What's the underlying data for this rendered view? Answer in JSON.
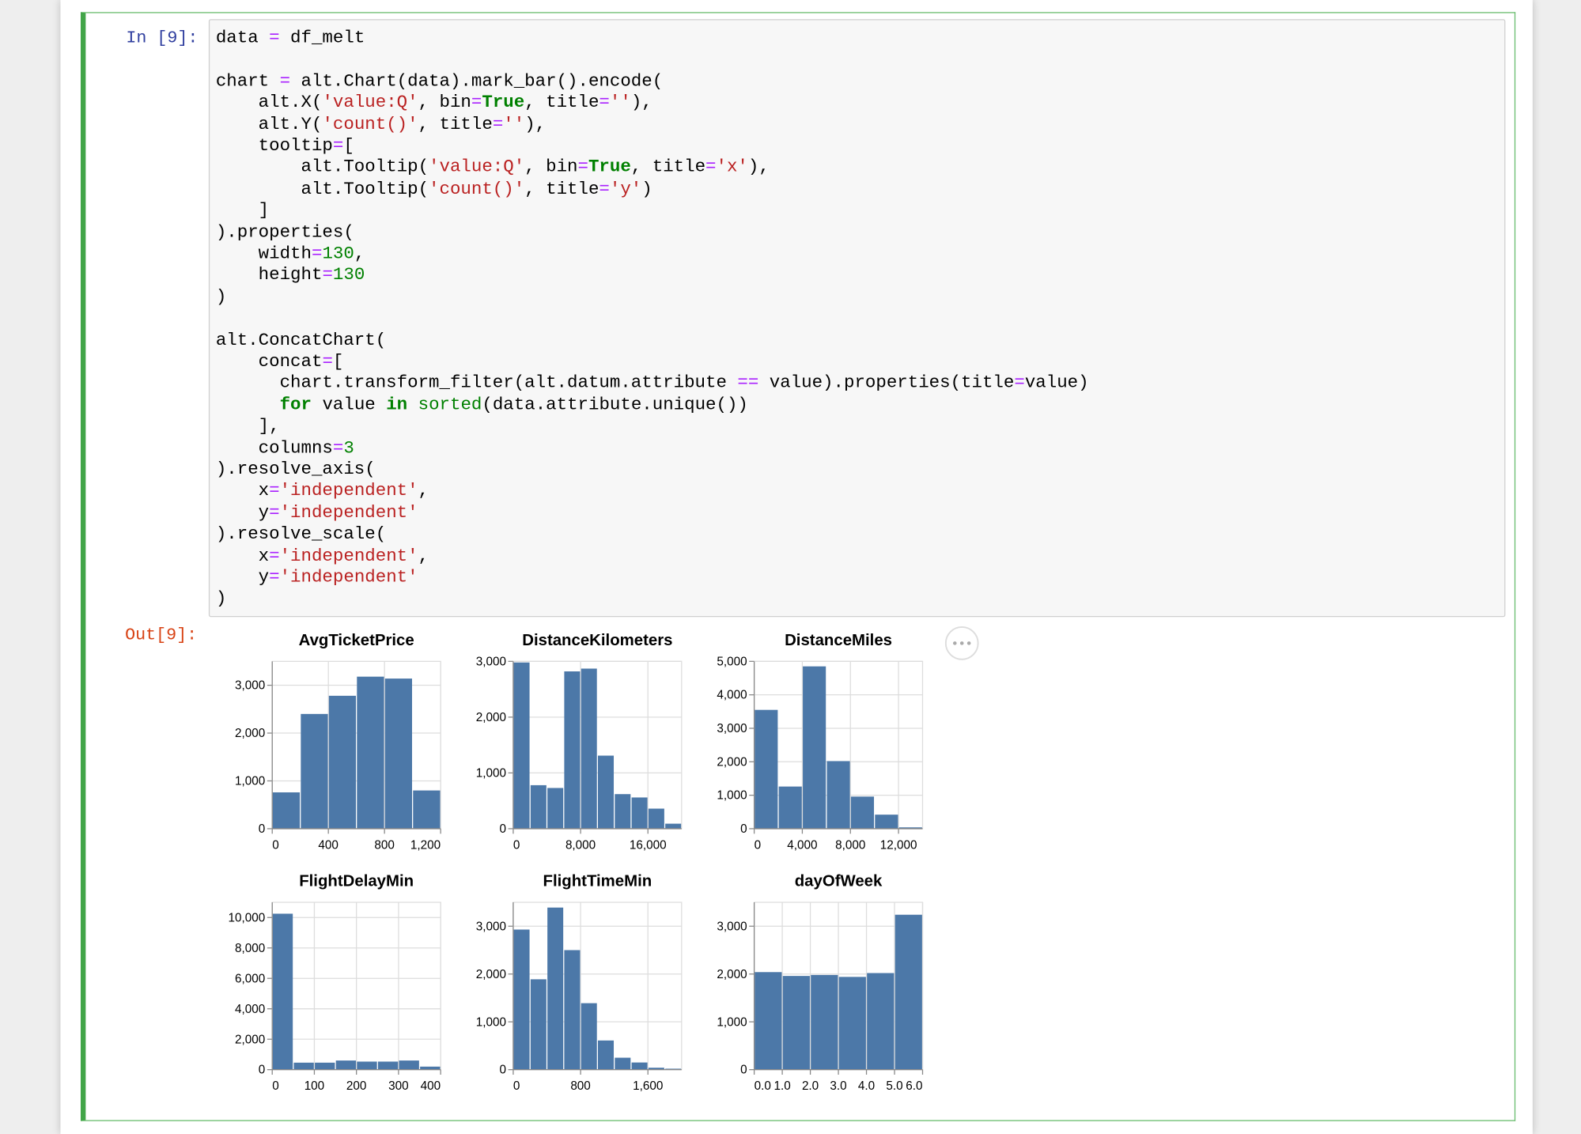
{
  "cell": {
    "prompt_in": "In [9]:",
    "prompt_out": "Out[9]:",
    "code": [
      [
        "data = df_melt"
      ],
      [
        "chart = alt.Chart(data).mark_bar().encode(",
        "    alt.X('value:Q', bin=True, title=''),",
        "    alt.Y('count()', title=''),",
        "    tooltip=[",
        "        alt.Tooltip('value:Q', bin=True, title='x'),",
        "        alt.Tooltip('count()', title='y')",
        "    ]",
        ").properties(",
        "    width=130,",
        "    height=130",
        ")"
      ],
      [
        "alt.ConcatChart(",
        "    concat=[",
        "      chart.transform_filter(alt.datum.attribute == value).properties(title=value)",
        "      for value in sorted(data.attribute.unique())",
        "    ],",
        "    columns=3",
        ").resolve_axis(",
        "    x='independent',",
        "    y='independent'",
        ").resolve_scale(",
        "    x='independent',",
        "    y='independent'",
        ")"
      ]
    ]
  },
  "chart_data": [
    {
      "type": "histogram",
      "title": "AvgTicketPrice",
      "color": "#4c78a8",
      "grid": true,
      "bins": [
        0,
        200,
        400,
        600,
        800,
        1000,
        1200
      ],
      "values": [
        760,
        2400,
        2780,
        3180,
        3140,
        800
      ],
      "xlim": [
        0,
        1200
      ],
      "xticks": [
        0,
        400,
        800,
        {
          "value": 1200,
          "label": "1,200"
        }
      ],
      "ylim": [
        0,
        3500
      ],
      "yticks": [
        0,
        {
          "value": 1000,
          "label": "1,000"
        },
        {
          "value": 2000,
          "label": "2,000"
        },
        {
          "value": 3000,
          "label": "3,000"
        }
      ]
    },
    {
      "type": "histogram",
      "title": "DistanceKilometers",
      "color": "#4c78a8",
      "grid": true,
      "bins": [
        0,
        2000,
        4000,
        6000,
        8000,
        10000,
        12000,
        14000,
        16000,
        18000,
        20000
      ],
      "values": [
        2980,
        780,
        730,
        2820,
        2870,
        1310,
        620,
        560,
        360,
        90
      ],
      "xlim": [
        0,
        20000
      ],
      "xticks": [
        0,
        {
          "value": 8000,
          "label": "8,000"
        },
        {
          "value": 16000,
          "label": "16,000"
        }
      ],
      "ylim": [
        0,
        3000
      ],
      "yticks": [
        0,
        {
          "value": 1000,
          "label": "1,000"
        },
        {
          "value": 2000,
          "label": "2,000"
        },
        {
          "value": 3000,
          "label": "3,000"
        }
      ]
    },
    {
      "type": "histogram",
      "title": "DistanceMiles",
      "color": "#4c78a8",
      "grid": true,
      "bins": [
        0,
        2000,
        4000,
        6000,
        8000,
        10000,
        12000,
        14000
      ],
      "values": [
        3550,
        1260,
        4850,
        2020,
        960,
        420,
        40
      ],
      "xlim": [
        0,
        14000
      ],
      "xticks": [
        0,
        {
          "value": 4000,
          "label": "4,000"
        },
        {
          "value": 8000,
          "label": "8,000"
        },
        {
          "value": 12000,
          "label": "12,000"
        }
      ],
      "ylim": [
        0,
        5000
      ],
      "yticks": [
        0,
        {
          "value": 1000,
          "label": "1,000"
        },
        {
          "value": 2000,
          "label": "2,000"
        },
        {
          "value": 3000,
          "label": "3,000"
        },
        {
          "value": 4000,
          "label": "4,000"
        },
        {
          "value": 5000,
          "label": "5,000"
        }
      ]
    },
    {
      "type": "histogram",
      "title": "FlightDelayMin",
      "color": "#4c78a8",
      "grid": true,
      "bins": [
        0,
        50,
        100,
        150,
        200,
        250,
        300,
        350,
        400
      ],
      "values": [
        10250,
        460,
        460,
        600,
        530,
        530,
        600,
        200
      ],
      "xlim": [
        0,
        400
      ],
      "xticks": [
        0,
        100,
        200,
        300,
        400
      ],
      "ylim": [
        0,
        11000
      ],
      "yticks": [
        0,
        {
          "value": 2000,
          "label": "2,000"
        },
        {
          "value": 4000,
          "label": "4,000"
        },
        {
          "value": 6000,
          "label": "6,000"
        },
        {
          "value": 8000,
          "label": "8,000"
        },
        {
          "value": 10000,
          "label": "10,000"
        }
      ]
    },
    {
      "type": "histogram",
      "title": "FlightTimeMin",
      "color": "#4c78a8",
      "grid": true,
      "bins": [
        0,
        200,
        400,
        600,
        800,
        1000,
        1200,
        1400,
        1600,
        1800,
        2000
      ],
      "values": [
        2930,
        1890,
        3390,
        2500,
        1390,
        610,
        250,
        150,
        40,
        20
      ],
      "xlim": [
        0,
        2000
      ],
      "xticks": [
        0,
        800,
        {
          "value": 1600,
          "label": "1,600"
        }
      ],
      "ylim": [
        0,
        3500
      ],
      "yticks": [
        0,
        {
          "value": 1000,
          "label": "1,000"
        },
        {
          "value": 2000,
          "label": "2,000"
        },
        {
          "value": 3000,
          "label": "3,000"
        }
      ]
    },
    {
      "type": "histogram",
      "title": "dayOfWeek",
      "color": "#4c78a8",
      "grid": true,
      "bins": [
        0,
        1,
        2,
        3,
        4,
        5,
        6
      ],
      "values": [
        2040,
        1960,
        1980,
        1940,
        2020,
        3240
      ],
      "xlim": [
        0,
        6
      ],
      "xticks": [
        {
          "value": 0,
          "label": "0.0"
        },
        {
          "value": 1,
          "label": "1.0"
        },
        {
          "value": 2,
          "label": "2.0"
        },
        {
          "value": 3,
          "label": "3.0"
        },
        {
          "value": 4,
          "label": "4.0"
        },
        {
          "value": 5,
          "label": "5.0"
        },
        {
          "value": 6,
          "label": "6.0"
        }
      ],
      "ylim": [
        0,
        3500
      ],
      "yticks": [
        0,
        {
          "value": 1000,
          "label": "1,000"
        },
        {
          "value": 2000,
          "label": "2,000"
        },
        {
          "value": 3000,
          "label": "3,000"
        }
      ]
    }
  ]
}
